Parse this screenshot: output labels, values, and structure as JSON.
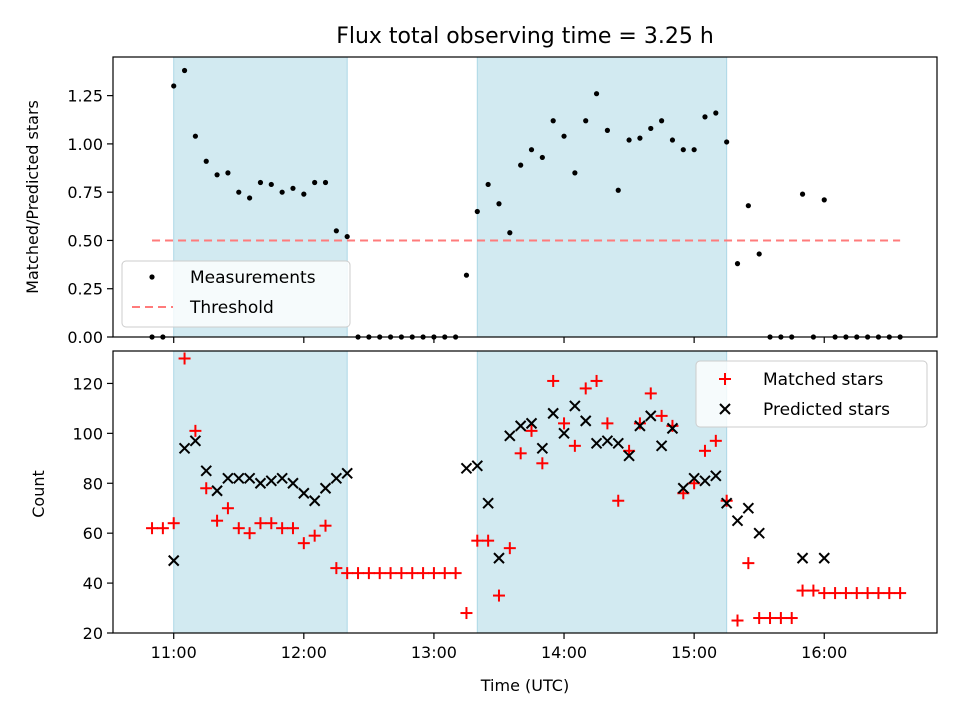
{
  "chart_data": [
    {
      "type": "scatter",
      "title": "Flux total observing time = 3.25 h",
      "xlabel": "",
      "ylabel": "Matched/Predicted stars",
      "xlim": [
        "10:32",
        "16:52"
      ],
      "ylim": [
        0,
        1.45
      ],
      "x_ticks": [
        "11:00",
        "12:00",
        "13:00",
        "14:00",
        "15:00",
        "16:00"
      ],
      "y_ticks": [
        "0.00",
        "0.25",
        "0.50",
        "0.75",
        "1.00",
        "1.25"
      ],
      "shaded_intervals": [
        [
          "11:00",
          "12:20"
        ],
        [
          "13:20",
          "15:15"
        ]
      ],
      "threshold": {
        "name": "Threshold",
        "value": 0.5,
        "x_range": [
          "10:50",
          "16:35"
        ],
        "color": "#ff7b7b"
      },
      "series": [
        {
          "name": "Measurements",
          "color": "#000000",
          "points": [
            [
              "10:50",
              0
            ],
            [
              "10:55",
              0
            ],
            [
              "11:00",
              1.3
            ],
            [
              "11:05",
              1.38
            ],
            [
              "11:10",
              1.04
            ],
            [
              "11:15",
              0.91
            ],
            [
              "11:20",
              0.84
            ],
            [
              "11:25",
              0.85
            ],
            [
              "11:30",
              0.75
            ],
            [
              "11:35",
              0.72
            ],
            [
              "11:40",
              0.8
            ],
            [
              "11:45",
              0.79
            ],
            [
              "11:50",
              0.75
            ],
            [
              "11:55",
              0.77
            ],
            [
              "12:00",
              0.74
            ],
            [
              "12:05",
              0.8
            ],
            [
              "12:10",
              0.8
            ],
            [
              "12:15",
              0.55
            ],
            [
              "12:20",
              0.52
            ],
            [
              "12:25",
              0
            ],
            [
              "12:30",
              0
            ],
            [
              "12:35",
              0
            ],
            [
              "12:40",
              0
            ],
            [
              "12:45",
              0
            ],
            [
              "12:50",
              0
            ],
            [
              "12:55",
              0
            ],
            [
              "13:00",
              0
            ],
            [
              "13:05",
              0
            ],
            [
              "13:10",
              0
            ],
            [
              "13:15",
              0.32
            ],
            [
              "13:20",
              0.65
            ],
            [
              "13:25",
              0.79
            ],
            [
              "13:30",
              0.69
            ],
            [
              "13:35",
              0.54
            ],
            [
              "13:40",
              0.89
            ],
            [
              "13:45",
              0.97
            ],
            [
              "13:50",
              0.93
            ],
            [
              "13:55",
              1.12
            ],
            [
              "14:00",
              1.04
            ],
            [
              "14:05",
              0.85
            ],
            [
              "14:10",
              1.12
            ],
            [
              "14:15",
              1.26
            ],
            [
              "14:20",
              1.07
            ],
            [
              "14:25",
              0.76
            ],
            [
              "14:30",
              1.02
            ],
            [
              "14:35",
              1.03
            ],
            [
              "14:40",
              1.08
            ],
            [
              "14:45",
              1.12
            ],
            [
              "14:50",
              1.02
            ],
            [
              "14:55",
              0.97
            ],
            [
              "15:00",
              0.97
            ],
            [
              "15:05",
              1.14
            ],
            [
              "15:10",
              1.16
            ],
            [
              "15:15",
              1.01
            ],
            [
              "15:20",
              0.38
            ],
            [
              "15:25",
              0.68
            ],
            [
              "15:30",
              0.43
            ],
            [
              "15:35",
              0
            ],
            [
              "15:40",
              0
            ],
            [
              "15:45",
              0
            ],
            [
              "15:50",
              0.74
            ],
            [
              "15:55",
              0
            ],
            [
              "16:00",
              0.71
            ],
            [
              "16:05",
              0
            ],
            [
              "16:10",
              0
            ],
            [
              "16:15",
              0
            ],
            [
              "16:20",
              0
            ],
            [
              "16:25",
              0
            ],
            [
              "16:30",
              0
            ],
            [
              "16:35",
              0
            ]
          ]
        }
      ],
      "legend": {
        "placement": "lower-left",
        "entries": [
          "Measurements",
          "Threshold"
        ]
      }
    },
    {
      "type": "scatter",
      "title": "",
      "xlabel": "Time (UTC)",
      "ylabel": "Count",
      "xlim": [
        "10:32",
        "16:52"
      ],
      "ylim": [
        20,
        133
      ],
      "x_ticks": [
        "11:00",
        "12:00",
        "13:00",
        "14:00",
        "15:00",
        "16:00"
      ],
      "y_ticks": [
        "20",
        "40",
        "60",
        "80",
        "100",
        "120"
      ],
      "shaded_intervals": [
        [
          "11:00",
          "12:20"
        ],
        [
          "13:20",
          "15:15"
        ]
      ],
      "series": [
        {
          "name": "Matched stars",
          "color": "#ff0000",
          "marker": "plus",
          "points": [
            [
              "10:50",
              62
            ],
            [
              "10:55",
              62
            ],
            [
              "11:00",
              64
            ],
            [
              "11:05",
              130
            ],
            [
              "11:10",
              101
            ],
            [
              "11:15",
              78
            ],
            [
              "11:20",
              65
            ],
            [
              "11:25",
              70
            ],
            [
              "11:30",
              62
            ],
            [
              "11:35",
              60
            ],
            [
              "11:40",
              64
            ],
            [
              "11:45",
              64
            ],
            [
              "11:50",
              62
            ],
            [
              "11:55",
              62
            ],
            [
              "12:00",
              56
            ],
            [
              "12:05",
              59
            ],
            [
              "12:10",
              63
            ],
            [
              "12:15",
              46
            ],
            [
              "12:20",
              44
            ],
            [
              "12:25",
              44
            ],
            [
              "12:30",
              44
            ],
            [
              "12:35",
              44
            ],
            [
              "12:40",
              44
            ],
            [
              "12:45",
              44
            ],
            [
              "12:50",
              44
            ],
            [
              "12:55",
              44
            ],
            [
              "13:00",
              44
            ],
            [
              "13:05",
              44
            ],
            [
              "13:10",
              44
            ],
            [
              "13:15",
              28
            ],
            [
              "13:20",
              57
            ],
            [
              "13:25",
              57
            ],
            [
              "13:30",
              35
            ],
            [
              "13:35",
              54
            ],
            [
              "13:40",
              92
            ],
            [
              "13:45",
              101
            ],
            [
              "13:50",
              88
            ],
            [
              "13:55",
              121
            ],
            [
              "14:00",
              104
            ],
            [
              "14:05",
              95
            ],
            [
              "14:10",
              118
            ],
            [
              "14:15",
              121
            ],
            [
              "14:20",
              104
            ],
            [
              "14:25",
              73
            ],
            [
              "14:30",
              93
            ],
            [
              "14:35",
              104
            ],
            [
              "14:40",
              116
            ],
            [
              "14:45",
              107
            ],
            [
              "14:50",
              103
            ],
            [
              "14:55",
              76
            ],
            [
              "15:00",
              80
            ],
            [
              "15:05",
              93
            ],
            [
              "15:10",
              97
            ],
            [
              "15:15",
              73
            ],
            [
              "15:20",
              25
            ],
            [
              "15:25",
              48
            ],
            [
              "15:30",
              26
            ],
            [
              "15:35",
              26
            ],
            [
              "15:40",
              26
            ],
            [
              "15:45",
              26
            ],
            [
              "15:50",
              37
            ],
            [
              "15:55",
              37
            ],
            [
              "16:00",
              36
            ],
            [
              "16:05",
              36
            ],
            [
              "16:10",
              36
            ],
            [
              "16:15",
              36
            ],
            [
              "16:20",
              36
            ],
            [
              "16:25",
              36
            ],
            [
              "16:30",
              36
            ],
            [
              "16:35",
              36
            ]
          ]
        },
        {
          "name": "Predicted stars",
          "color": "#000000",
          "marker": "x",
          "points": [
            [
              "11:00",
              49
            ],
            [
              "11:05",
              94
            ],
            [
              "11:10",
              97
            ],
            [
              "11:15",
              85
            ],
            [
              "11:20",
              77
            ],
            [
              "11:25",
              82
            ],
            [
              "11:30",
              82
            ],
            [
              "11:35",
              82
            ],
            [
              "11:40",
              80
            ],
            [
              "11:45",
              81
            ],
            [
              "11:50",
              82
            ],
            [
              "11:55",
              80
            ],
            [
              "12:00",
              76
            ],
            [
              "12:05",
              73
            ],
            [
              "12:10",
              78
            ],
            [
              "12:15",
              82
            ],
            [
              "12:20",
              84
            ],
            [
              "13:15",
              86
            ],
            [
              "13:20",
              87
            ],
            [
              "13:25",
              72
            ],
            [
              "13:30",
              50
            ],
            [
              "13:35",
              99
            ],
            [
              "13:40",
              103
            ],
            [
              "13:45",
              104
            ],
            [
              "13:50",
              94
            ],
            [
              "13:55",
              108
            ],
            [
              "14:00",
              100
            ],
            [
              "14:05",
              111
            ],
            [
              "14:10",
              105
            ],
            [
              "14:15",
              96
            ],
            [
              "14:20",
              97
            ],
            [
              "14:25",
              96
            ],
            [
              "14:30",
              91
            ],
            [
              "14:35",
              103
            ],
            [
              "14:40",
              107
            ],
            [
              "14:45",
              95
            ],
            [
              "14:50",
              102
            ],
            [
              "14:55",
              78
            ],
            [
              "15:00",
              82
            ],
            [
              "15:05",
              81
            ],
            [
              "15:10",
              83
            ],
            [
              "15:15",
              72
            ],
            [
              "15:20",
              65
            ],
            [
              "15:25",
              70
            ],
            [
              "15:30",
              60
            ],
            [
              "15:50",
              50
            ],
            [
              "16:00",
              50
            ]
          ]
        }
      ],
      "legend": {
        "placement": "upper-right",
        "entries": [
          "Matched stars",
          "Predicted stars"
        ]
      }
    }
  ],
  "colors": {
    "shade": "#add8e6",
    "threshold": "#ff7b7b",
    "matched": "#ff0000",
    "predicted": "#000000",
    "measurement": "#000000"
  }
}
